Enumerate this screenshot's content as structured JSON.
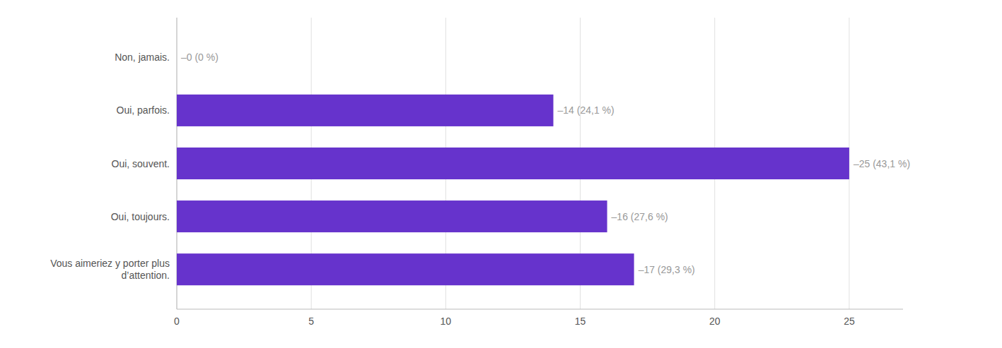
{
  "chart_data": {
    "type": "bar",
    "orientation": "horizontal",
    "categories": [
      "Non, jamais.",
      "Oui, parfois.",
      "Oui, souvent.",
      "Oui, toujours.",
      "Vous aimeriez y porter plus\nd’attention."
    ],
    "values": [
      0,
      14,
      25,
      16,
      17
    ],
    "value_labels": [
      "–0 (0 %)",
      "–14 (24,1 %)",
      "–25 (43,1 %)",
      "–16 (27,6 %)",
      "–17 (29,3 %)"
    ],
    "data_labels": true,
    "color": "#6633cc",
    "xlim": [
      0,
      27
    ],
    "xticks": [
      0,
      5,
      10,
      15,
      20,
      25
    ],
    "grid": true
  }
}
